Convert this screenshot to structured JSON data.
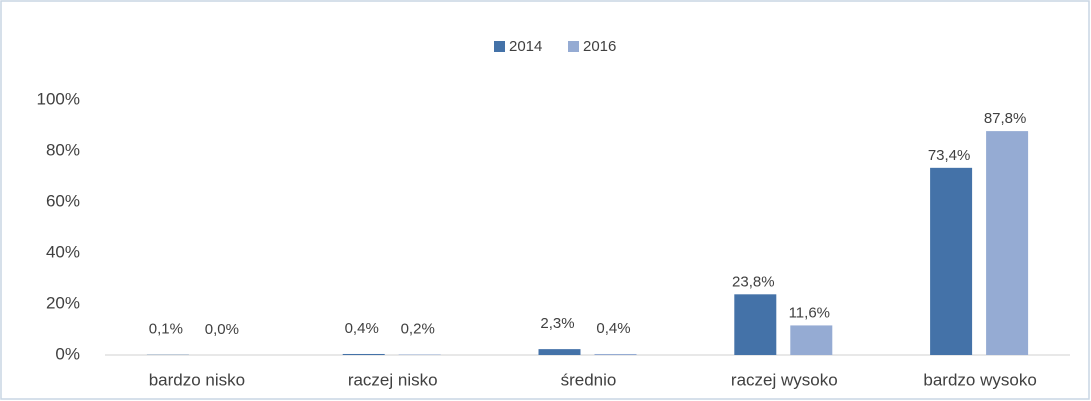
{
  "chart_data": {
    "type": "bar",
    "categories": [
      "bardzo nisko",
      "raczej nisko",
      "średnio",
      "raczej wysoko",
      "bardzo wysoko"
    ],
    "series": [
      {
        "name": "2014",
        "color": "#4472a8",
        "values": [
          0.1,
          0.4,
          2.3,
          23.8,
          73.4
        ],
        "value_labels": [
          "0,1%",
          "0,4%",
          "2,3%",
          "23,8%",
          "73,4%"
        ]
      },
      {
        "name": "2016",
        "color": "#95abd3",
        "values": [
          0.0,
          0.2,
          0.4,
          11.6,
          87.8
        ],
        "value_labels": [
          "0,0%",
          "0,2%",
          "0,4%",
          "11,6%",
          "87,8%"
        ]
      }
    ],
    "ylim": [
      0,
      100
    ],
    "yticks": [
      {
        "value": 0,
        "label": "0%"
      },
      {
        "value": 20,
        "label": "20%"
      },
      {
        "value": 40,
        "label": "40%"
      },
      {
        "value": 60,
        "label": "60%"
      },
      {
        "value": 80,
        "label": "80%"
      },
      {
        "value": 100,
        "label": "100%"
      }
    ],
    "legend": "top",
    "grid": false
  }
}
